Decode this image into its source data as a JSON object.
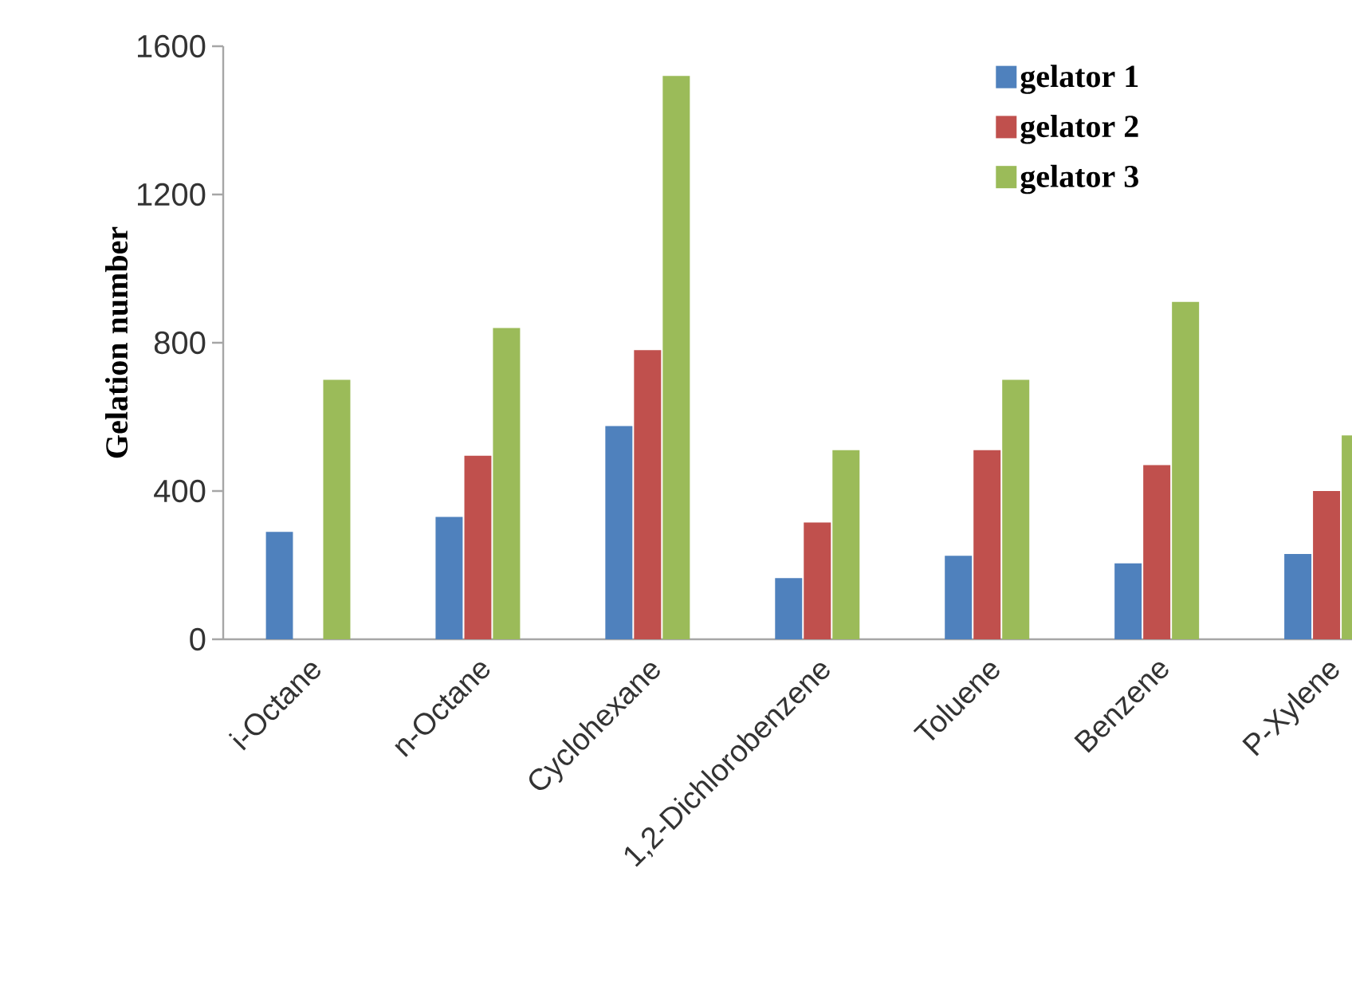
{
  "chart_data": {
    "type": "bar",
    "ylabel": "Gelation number",
    "categories": [
      "i-Octane",
      "n-Octane",
      "Cyclohexane",
      "1,2-Dichlorobenzene",
      "Toluene",
      "Benzene",
      "P-Xylene"
    ],
    "series": [
      {
        "name": "gelator 1",
        "color": "#4f81bd",
        "values": [
          290,
          330,
          575,
          165,
          225,
          205,
          230
        ]
      },
      {
        "name": "gelator 2",
        "color": "#c0504d",
        "values": [
          null,
          495,
          780,
          315,
          510,
          470,
          400
        ]
      },
      {
        "name": "gelator 3",
        "color": "#9bbb59",
        "values": [
          700,
          840,
          1520,
          510,
          700,
          910,
          550
        ]
      }
    ],
    "ylim": [
      0,
      1600
    ],
    "yticks": [
      0,
      400,
      800,
      1200,
      1600
    ],
    "grid": false,
    "legend": "top right"
  }
}
